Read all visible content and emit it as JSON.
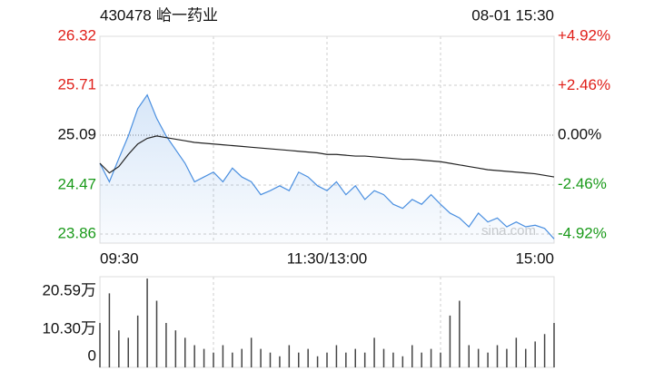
{
  "chart_data": [
    {
      "type": "line",
      "code": "430478",
      "name": "峆一药业",
      "time": "08-01 15:30",
      "watermark": "sina.com",
      "xlim": [
        0,
        240
      ],
      "xticks": [
        {
          "value": 0,
          "label": "09:30"
        },
        {
          "value": 120,
          "label": "11:30/13:00"
        },
        {
          "value": 240,
          "label": "15:00"
        }
      ],
      "ylim": [
        23.86,
        26.32
      ],
      "yticks": [
        26.32,
        25.71,
        25.09,
        24.47,
        23.86
      ],
      "y2lim": [
        -4.92,
        4.92
      ],
      "y2ticks": [
        {
          "value": 4.92,
          "label": "+4.92%"
        },
        {
          "value": 2.46,
          "label": "+2.46%"
        },
        {
          "value": 0,
          "label": "0.00%"
        },
        {
          "value": -2.46,
          "label": "-2.46%"
        },
        {
          "value": -4.92,
          "label": "-4.92%"
        }
      ],
      "up_color": "#e0201a",
      "down_color": "#1a9a1a",
      "x": [
        0,
        5,
        10,
        15,
        20,
        25,
        30,
        35,
        40,
        45,
        50,
        55,
        60,
        65,
        70,
        75,
        80,
        85,
        90,
        95,
        100,
        105,
        110,
        115,
        120,
        125,
        130,
        135,
        140,
        145,
        150,
        155,
        160,
        165,
        170,
        175,
        180,
        185,
        190,
        195,
        200,
        205,
        210,
        215,
        220,
        225,
        230,
        235,
        240
      ],
      "series": [
        {
          "color": "#4a8fe0",
          "values": [
            24.74,
            24.51,
            24.8,
            25.08,
            25.42,
            25.59,
            25.3,
            25.08,
            24.91,
            24.74,
            24.51,
            24.57,
            24.63,
            24.51,
            24.68,
            24.57,
            24.51,
            24.35,
            24.4,
            24.46,
            24.4,
            24.63,
            24.57,
            24.46,
            24.4,
            24.51,
            24.35,
            24.46,
            24.29,
            24.4,
            24.35,
            24.23,
            24.18,
            24.29,
            24.23,
            24.35,
            24.23,
            24.12,
            24.06,
            23.95,
            24.12,
            24.01,
            24.06,
            23.95,
            24.01,
            23.95,
            23.97,
            23.93,
            23.8
          ]
        },
        {
          "color": "#222222",
          "values": [
            24.74,
            24.62,
            24.7,
            24.85,
            24.98,
            25.05,
            25.08,
            25.06,
            25.04,
            25.02,
            25.0,
            24.99,
            24.98,
            24.97,
            24.96,
            24.95,
            24.94,
            24.93,
            24.92,
            24.91,
            24.9,
            24.89,
            24.88,
            24.87,
            24.85,
            24.85,
            24.84,
            24.83,
            24.83,
            24.82,
            24.81,
            24.8,
            24.79,
            24.79,
            24.78,
            24.77,
            24.76,
            24.74,
            24.72,
            24.7,
            24.68,
            24.66,
            24.65,
            24.64,
            24.63,
            24.62,
            24.61,
            24.59,
            24.57
          ]
        }
      ]
    },
    {
      "type": "bar",
      "ylim": [
        0,
        24.5
      ],
      "yticks": [
        {
          "value": 20.59,
          "label": "20.59万"
        },
        {
          "value": 10.3,
          "label": "10.30万"
        },
        0
      ],
      "color": "#444444",
      "x": [
        0,
        5,
        10,
        15,
        20,
        25,
        30,
        35,
        40,
        45,
        50,
        55,
        60,
        65,
        70,
        75,
        80,
        85,
        90,
        95,
        100,
        105,
        110,
        115,
        120,
        125,
        130,
        135,
        140,
        145,
        150,
        155,
        160,
        165,
        170,
        175,
        180,
        185,
        190,
        195,
        200,
        205,
        210,
        215,
        220,
        225,
        230,
        235,
        240
      ],
      "values": [
        12,
        20,
        10,
        8,
        14,
        24,
        18,
        12,
        10,
        8,
        6,
        5,
        4,
        6,
        4,
        5,
        8,
        5,
        4,
        3,
        6,
        4,
        5,
        3,
        4,
        6,
        4,
        5,
        4,
        8,
        5,
        4,
        3,
        6,
        4,
        5,
        4,
        14,
        18,
        6,
        5,
        4,
        6,
        5,
        8,
        5,
        7,
        9,
        12
      ]
    }
  ]
}
